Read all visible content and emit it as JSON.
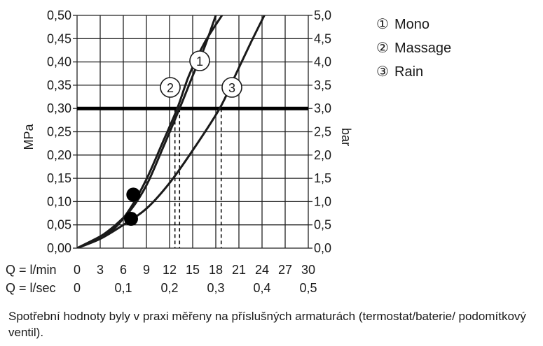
{
  "chart_data": {
    "type": "line",
    "y_left_label": "MPa",
    "y_right_label": "bar",
    "y_left_ticks": [
      "0,00",
      "0,05",
      "0,10",
      "0,15",
      "0,20",
      "0,25",
      "0,30",
      "0,35",
      "0,40",
      "0,45",
      "0,50"
    ],
    "y_right_ticks": [
      "0,0",
      "0,5",
      "1,0",
      "1,5",
      "2,0",
      "2,5",
      "3,0",
      "3,5",
      "4,0",
      "4,5",
      "5,0"
    ],
    "ylim": [
      0,
      0.5
    ],
    "xlim": [
      0,
      30
    ],
    "x_row1_label": "Q = l/min",
    "x_row1_ticks": [
      "0",
      "3",
      "6",
      "9",
      "12",
      "15",
      "18",
      "21",
      "24",
      "27",
      "30"
    ],
    "x_row2_label": "Q = l/sec",
    "x_row2_ticks": [
      "0",
      "0,1",
      "0,2",
      "0,3",
      "0,4",
      "0,5"
    ],
    "reference_line": {
      "y": 0.3
    },
    "grid": true,
    "series": [
      {
        "name": "Mono",
        "marker": "1",
        "points": [
          [
            0,
            0
          ],
          [
            3,
            0.025
          ],
          [
            5,
            0.05
          ],
          [
            7,
            0.083
          ],
          [
            9,
            0.135
          ],
          [
            11,
            0.21
          ],
          [
            13.3,
            0.3
          ],
          [
            15,
            0.37
          ],
          [
            16.5,
            0.43
          ],
          [
            18,
            0.5
          ]
        ]
      },
      {
        "name": "Massage",
        "marker": "2",
        "points": [
          [
            0,
            0
          ],
          [
            3,
            0.025
          ],
          [
            5,
            0.045
          ],
          [
            7,
            0.088
          ],
          [
            9,
            0.148
          ],
          [
            11,
            0.223
          ],
          [
            13,
            0.3
          ],
          [
            14.5,
            0.37
          ],
          [
            16.5,
            0.44
          ],
          [
            18.8,
            0.5
          ]
        ]
      },
      {
        "name": "Rain",
        "marker": "3",
        "points": [
          [
            0,
            0
          ],
          [
            3,
            0.02
          ],
          [
            6,
            0.05
          ],
          [
            9,
            0.085
          ],
          [
            12,
            0.14
          ],
          [
            15,
            0.21
          ],
          [
            18.5,
            0.3
          ],
          [
            20.5,
            0.37
          ],
          [
            22.5,
            0.44
          ],
          [
            24.3,
            0.5
          ]
        ]
      }
    ],
    "dashed_drops": [
      12.7,
      13.3,
      18.7
    ],
    "filled_markers": [
      [
        7.3,
        0.115
      ],
      [
        7.0,
        0.063
      ]
    ]
  },
  "legend": [
    {
      "symbol": "①",
      "label": "Mono"
    },
    {
      "symbol": "②",
      "label": "Massage"
    },
    {
      "symbol": "③",
      "label": "Rain"
    }
  ],
  "footnote": "Spotřební hodnoty byly v praxi měřeny na příslušných armaturách (termostat/baterie/ podomítkový ventil)."
}
